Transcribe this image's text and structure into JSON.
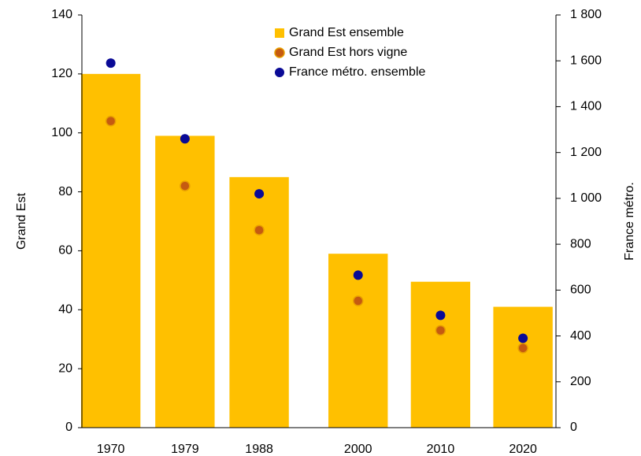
{
  "chart_data": {
    "type": "bar",
    "x": [
      1970,
      1979,
      1988,
      2000,
      2010,
      2020
    ],
    "xlim": [
      1966.5,
      2024
    ],
    "ylabel": "Grand Est",
    "y2label": "France métro.",
    "ylim": [
      0,
      140
    ],
    "yticks": [
      0,
      20,
      40,
      60,
      80,
      100,
      120,
      140
    ],
    "y2lim": [
      0,
      1800
    ],
    "y2ticks": [
      0,
      200,
      400,
      600,
      800,
      {
        "value": 1000,
        "label": "1 000"
      },
      {
        "value": 1200,
        "label": "1 200"
      },
      {
        "value": 1400,
        "label": "1 400"
      },
      {
        "value": 1600,
        "label": "1 600"
      },
      {
        "value": 1800,
        "label": "1 800"
      }
    ],
    "legend": "top",
    "series": [
      {
        "name": "Grand Est ensemble",
        "type": "bar",
        "color": "#FFC000",
        "values": [
          120,
          99,
          85,
          59,
          49.5,
          41
        ]
      },
      {
        "name": "Grand Est hors vigne",
        "type": "scatter",
        "color": "#C55A11",
        "values": [
          104,
          82,
          67,
          43,
          33,
          27
        ]
      },
      {
        "name": "France métro. ensemble",
        "type": "scatter",
        "color": "#0A0A96",
        "axis": "y2",
        "values": [
          1590,
          1260,
          1020,
          665,
          490,
          390
        ]
      }
    ]
  }
}
